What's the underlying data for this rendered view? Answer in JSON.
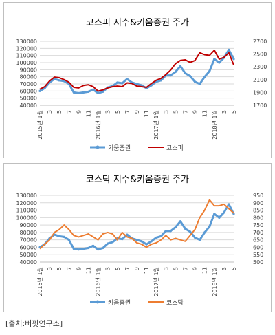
{
  "chart_data": [
    {
      "type": "line",
      "title": "코스피 지수&키움증권 주가",
      "x_tick_labels": [
        "2015년 1월",
        "3",
        "5",
        "7",
        "9",
        "11",
        "2016년 1월",
        "3",
        "5",
        "7",
        "9",
        "11",
        "2017년 1월",
        "3",
        "5",
        "7",
        "9",
        "11",
        "2018년 1월",
        "3",
        "5"
      ],
      "y_left": {
        "min": 40000,
        "max": 130000,
        "step": 10000,
        "ticks": [
          "40000",
          "50000",
          "60000",
          "70000",
          "80000",
          "90000",
          "100000",
          "110000",
          "120000",
          "130000"
        ]
      },
      "y_right": {
        "min": 1700,
        "max": 2700,
        "step": 200,
        "ticks": [
          "1700",
          "1900",
          "2100",
          "2300",
          "2500",
          "2700"
        ]
      },
      "legend_position": "bottom",
      "series": [
        {
          "name": "키움증권",
          "axis": "left",
          "color": "#5b9bd5",
          "values": [
            60000,
            64000,
            72000,
            77000,
            75000,
            74000,
            70000,
            58000,
            57000,
            58000,
            59000,
            62000,
            57000,
            59000,
            65000,
            67000,
            72000,
            71000,
            77000,
            72000,
            70000,
            68000,
            64000,
            68000,
            73000,
            75000,
            82000,
            82000,
            87000,
            95000,
            85000,
            81000,
            73000,
            70000,
            80000,
            88000,
            105000,
            100000,
            107000,
            118000,
            105000
          ]
        },
        {
          "name": "코스피",
          "axis": "right",
          "color": "#c00000",
          "values": [
            1950,
            1990,
            2080,
            2140,
            2130,
            2100,
            2060,
            1980,
            1970,
            2010,
            2020,
            1990,
            1920,
            1940,
            1970,
            1990,
            2000,
            1990,
            2050,
            2040,
            2000,
            1990,
            1980,
            2040,
            2090,
            2120,
            2180,
            2250,
            2350,
            2400,
            2410,
            2370,
            2400,
            2520,
            2490,
            2480,
            2560,
            2420,
            2450,
            2520,
            2330
          ]
        }
      ]
    },
    {
      "type": "line",
      "title": "코스닥 지수&키움증권 주가",
      "x_tick_labels": [
        "2015년 1월",
        "3",
        "5",
        "7",
        "9",
        "11",
        "2016년 1월",
        "3",
        "5",
        "7",
        "9",
        "11",
        "2017년 1월",
        "3",
        "5",
        "7",
        "9",
        "11",
        "2018년 1월",
        "3",
        "5"
      ],
      "y_left": {
        "min": 40000,
        "max": 130000,
        "step": 10000,
        "ticks": [
          "40000",
          "50000",
          "60000",
          "70000",
          "80000",
          "90000",
          "100000",
          "110000",
          "120000",
          "130000"
        ]
      },
      "y_right": {
        "min": 500,
        "max": 950,
        "step": 50,
        "ticks": [
          "500",
          "550",
          "600",
          "650",
          "700",
          "750",
          "800",
          "850",
          "900",
          "950"
        ]
      },
      "legend_position": "bottom",
      "series": [
        {
          "name": "키움증권",
          "axis": "left",
          "color": "#5b9bd5",
          "values": [
            60000,
            64000,
            72000,
            77000,
            75000,
            74000,
            70000,
            58000,
            57000,
            58000,
            59000,
            62000,
            57000,
            59000,
            65000,
            67000,
            72000,
            71000,
            77000,
            72000,
            70000,
            68000,
            64000,
            68000,
            73000,
            75000,
            82000,
            82000,
            87000,
            95000,
            85000,
            81000,
            73000,
            70000,
            80000,
            88000,
            105000,
            100000,
            107000,
            118000,
            105000
          ]
        },
        {
          "name": "코스닥",
          "axis": "right",
          "color": "#ed7d31",
          "values": [
            590,
            620,
            650,
            700,
            720,
            750,
            720,
            680,
            670,
            680,
            690,
            670,
            650,
            690,
            700,
            690,
            650,
            700,
            670,
            660,
            630,
            620,
            600,
            620,
            630,
            650,
            680,
            650,
            660,
            650,
            640,
            680,
            720,
            800,
            850,
            920,
            880,
            880,
            890,
            860,
            830
          ]
        }
      ]
    }
  ],
  "source": "[출처:버핏연구소]"
}
